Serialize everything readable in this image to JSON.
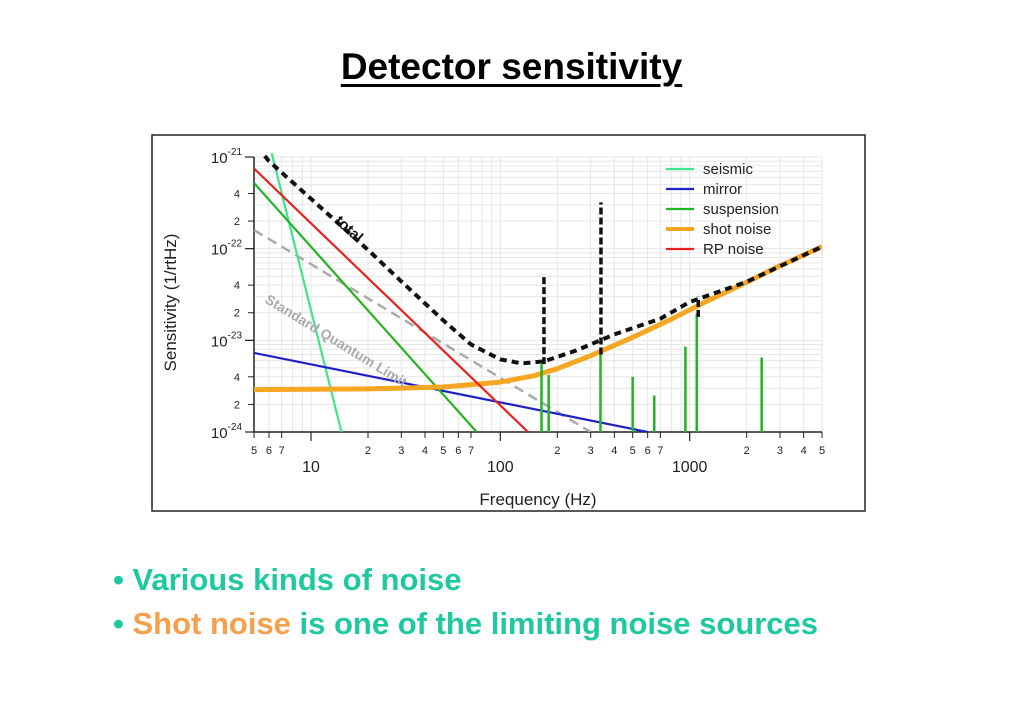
{
  "slide": {
    "title": "Detector sensitivity",
    "bullets": [
      {
        "parts": [
          {
            "text": "• ",
            "color": "#1fc9a0"
          },
          {
            "text": "Various kinds of noise",
            "color": "#1fc9a0"
          }
        ]
      },
      {
        "parts": [
          {
            "text": "• ",
            "color": "#1fc9a0"
          },
          {
            "text": "Shot noise",
            "color": "#f5a04a"
          },
          {
            "text": " is one of the limiting noise sources",
            "color": "#1fc9a0"
          }
        ]
      }
    ]
  },
  "chart_data": {
    "type": "line",
    "xlabel": "Frequency (Hz)",
    "ylabel": "Sensitivity (1/rtHz)",
    "xscale": "log",
    "yscale": "log",
    "xlim": [
      5,
      5000
    ],
    "ylim": [
      1e-24,
      1.2e-21
    ],
    "grid": true,
    "legend_position": "top-right",
    "x_major_ticks": [
      {
        "value": 10,
        "label": "10"
      },
      {
        "value": 100,
        "label": "100"
      },
      {
        "value": 1000,
        "label": "1000"
      }
    ],
    "x_minor_ticks": [
      {
        "value": 5,
        "label": "5"
      },
      {
        "value": 6,
        "label": "6"
      },
      {
        "value": 7,
        "label": "7"
      },
      {
        "value": 20,
        "label": "2"
      },
      {
        "value": 30,
        "label": "3"
      },
      {
        "value": 40,
        "label": "4"
      },
      {
        "value": 50,
        "label": "5"
      },
      {
        "value": 60,
        "label": "6"
      },
      {
        "value": 70,
        "label": "7"
      },
      {
        "value": 200,
        "label": "2"
      },
      {
        "value": 300,
        "label": "3"
      },
      {
        "value": 400,
        "label": "4"
      },
      {
        "value": 500,
        "label": "5"
      },
      {
        "value": 600,
        "label": "6"
      },
      {
        "value": 700,
        "label": "7"
      },
      {
        "value": 2000,
        "label": "2"
      },
      {
        "value": 3000,
        "label": "3"
      },
      {
        "value": 4000,
        "label": "4"
      },
      {
        "value": 5000,
        "label": "5"
      }
    ],
    "y_major_ticks": [
      {
        "value": 1e-24,
        "base": "10",
        "exp": "-24"
      },
      {
        "value": 1e-23,
        "base": "10",
        "exp": "-23"
      },
      {
        "value": 1e-22,
        "base": "10",
        "exp": "-22"
      },
      {
        "value": 1e-21,
        "base": "10",
        "exp": "-21"
      }
    ],
    "y_minor_ticks": [
      {
        "value": 2e-24,
        "label": "2"
      },
      {
        "value": 4e-24,
        "label": "4"
      },
      {
        "value": 2e-23,
        "label": "2"
      },
      {
        "value": 4e-23,
        "label": "4"
      },
      {
        "value": 2e-22,
        "label": "2"
      },
      {
        "value": 4e-22,
        "label": "4"
      }
    ],
    "series": [
      {
        "name": "seismic",
        "color": "#3de68a",
        "x": [
          6.2,
          14.5
        ],
        "y": [
          1.1e-21,
          1e-24
        ]
      },
      {
        "name": "mirror",
        "color": "#2020c8",
        "x": [
          5,
          600
        ],
        "y": [
          7.3e-24,
          1e-24
        ]
      },
      {
        "name": "suspension",
        "color": "#22b422",
        "x": [
          5,
          75
        ],
        "y": [
          5.2e-22,
          1e-24
        ]
      },
      {
        "name": "shot noise",
        "color": "#f5a623",
        "x": [
          5,
          20,
          50,
          100,
          150,
          200,
          300,
          500,
          800,
          1200,
          2000,
          3000,
          5000
        ],
        "y": [
          2.9e-24,
          2.95e-24,
          3.1e-24,
          3.5e-24,
          4.1e-24,
          4.9e-24,
          6.8e-24,
          1.08e-23,
          1.7e-23,
          2.6e-23,
          4.3e-23,
          6.5e-23,
          1.05e-22
        ]
      },
      {
        "name": "RP noise",
        "color": "#e8201e",
        "x": [
          5,
          140
        ],
        "y": [
          7.5e-22,
          1e-24
        ]
      }
    ],
    "total": {
      "label": "total",
      "color": "#111111",
      "x": [
        5.2,
        6,
        8,
        10,
        15,
        20,
        30,
        50,
        70,
        100,
        130,
        170,
        250,
        400,
        700,
        1000,
        2000,
        5000
      ],
      "y": [
        1.3e-21,
        9e-22,
        5.3e-22,
        3.5e-22,
        1.65e-22,
        9.7e-23,
        4.4e-23,
        1.65e-23,
        9e-24,
        6.2e-24,
        5.6e-24,
        5.9e-24,
        7.7e-24,
        1.16e-23,
        1.72e-23,
        2.62e-23,
        4.35e-23,
        1.05e-22
      ]
    },
    "sql": {
      "label": "Standard Quantum Limit",
      "color": "#aaaaaa",
      "x": [
        5,
        300
      ],
      "y": [
        1.6e-22,
        1e-24
      ]
    },
    "peaks": [
      {
        "x": 165,
        "ymin": 1e-24,
        "ymax": 5.5e-24,
        "color": "#22b422"
      },
      {
        "x": 180,
        "ymin": 1e-24,
        "ymax": 4.2e-24,
        "color": "#22b422"
      },
      {
        "x": 170,
        "ymin": 5.5e-24,
        "ymax": 5.3e-23,
        "color": "#111111"
      },
      {
        "x": 338,
        "ymin": 1e-24,
        "ymax": 7e-24,
        "color": "#22b422"
      },
      {
        "x": 340,
        "ymin": 7e-24,
        "ymax": 3.2e-22,
        "color": "#111111"
      },
      {
        "x": 500,
        "ymin": 1e-24,
        "ymax": 4e-24,
        "color": "#22b422"
      },
      {
        "x": 650,
        "ymin": 1e-24,
        "ymax": 2.5e-24,
        "color": "#22b422"
      },
      {
        "x": 950,
        "ymin": 1e-24,
        "ymax": 8.5e-24,
        "color": "#22b422"
      },
      {
        "x": 1090,
        "ymin": 1e-24,
        "ymax": 1.95e-23,
        "color": "#22b422"
      },
      {
        "x": 1110,
        "ymin": 1.8e-23,
        "ymax": 3e-23,
        "color": "#111111"
      },
      {
        "x": 2400,
        "ymin": 1e-24,
        "ymax": 6.5e-24,
        "color": "#22b422"
      }
    ]
  }
}
